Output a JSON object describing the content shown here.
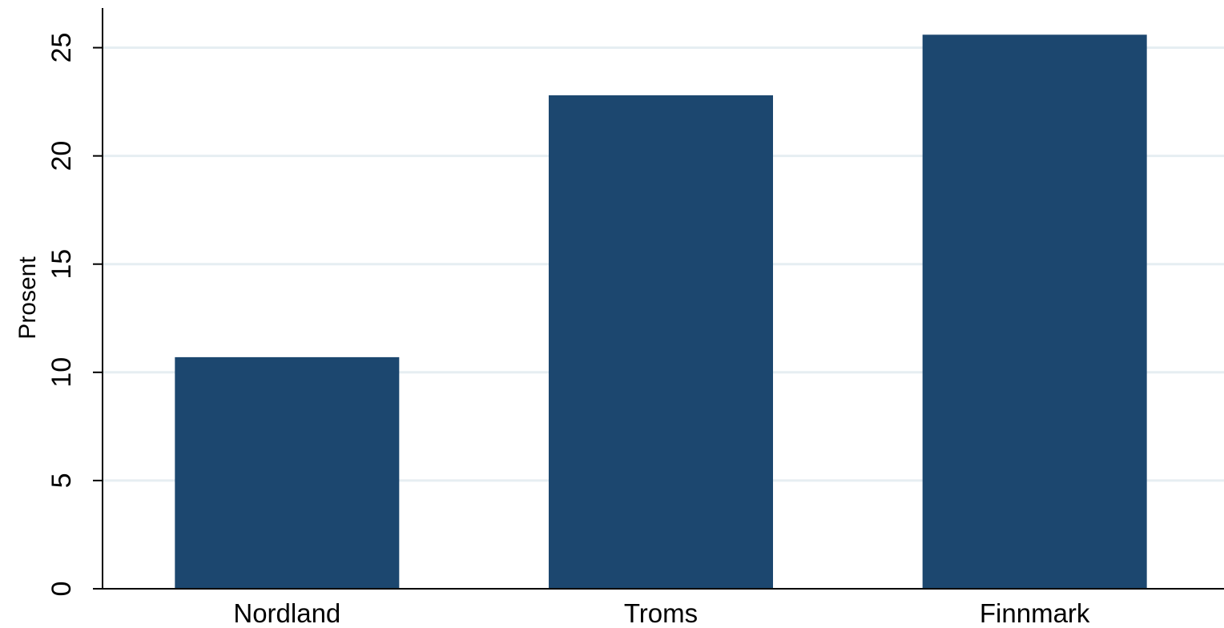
{
  "chart_data": {
    "type": "bar",
    "title": "",
    "xlabel": "",
    "ylabel": "Prosent",
    "categories": [
      "Nordland",
      "Troms",
      "Finnmark"
    ],
    "values": [
      10.7,
      22.8,
      25.6
    ],
    "yticks": [
      0,
      5,
      10,
      15,
      20,
      25
    ],
    "ylim": [
      0,
      26.5
    ],
    "grid": true,
    "bar_color": "#1c476f",
    "grid_color": "#e6eef2"
  }
}
